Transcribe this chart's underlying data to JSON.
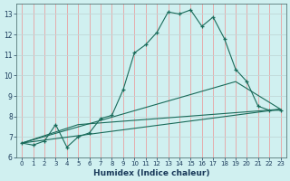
{
  "xlabel": "Humidex (Indice chaleur)",
  "background_color": "#d0f0f0",
  "grid_color_major": "#e8b0b0",
  "grid_color_minor": "#c8dede",
  "line_color": "#1a6b5a",
  "xlim": [
    -0.5,
    23.5
  ],
  "ylim": [
    6,
    13.5
  ],
  "xticks": [
    0,
    1,
    2,
    3,
    4,
    5,
    6,
    7,
    8,
    9,
    10,
    11,
    12,
    13,
    14,
    15,
    16,
    17,
    18,
    19,
    20,
    21,
    22,
    23
  ],
  "yticks": [
    6,
    7,
    8,
    9,
    10,
    11,
    12,
    13
  ],
  "main_curve": {
    "x": [
      0,
      1,
      2,
      3,
      4,
      5,
      6,
      7,
      8,
      9,
      10,
      11,
      12,
      13,
      14,
      15,
      16,
      17,
      18,
      19,
      20,
      21,
      22,
      23
    ],
    "y": [
      6.7,
      6.6,
      6.8,
      7.6,
      6.5,
      7.0,
      7.2,
      7.9,
      8.05,
      9.3,
      11.1,
      11.5,
      12.1,
      13.1,
      13.0,
      13.2,
      12.4,
      12.85,
      11.8,
      10.3,
      9.7,
      8.5,
      8.3,
      8.3
    ]
  },
  "line1": {
    "x": [
      0,
      23
    ],
    "y": [
      6.7,
      8.35
    ]
  },
  "line2": {
    "x": [
      0,
      5,
      23
    ],
    "y": [
      6.7,
      7.6,
      8.35
    ]
  },
  "line3": {
    "x": [
      0,
      19,
      23
    ],
    "y": [
      6.7,
      9.7,
      8.35
    ]
  }
}
